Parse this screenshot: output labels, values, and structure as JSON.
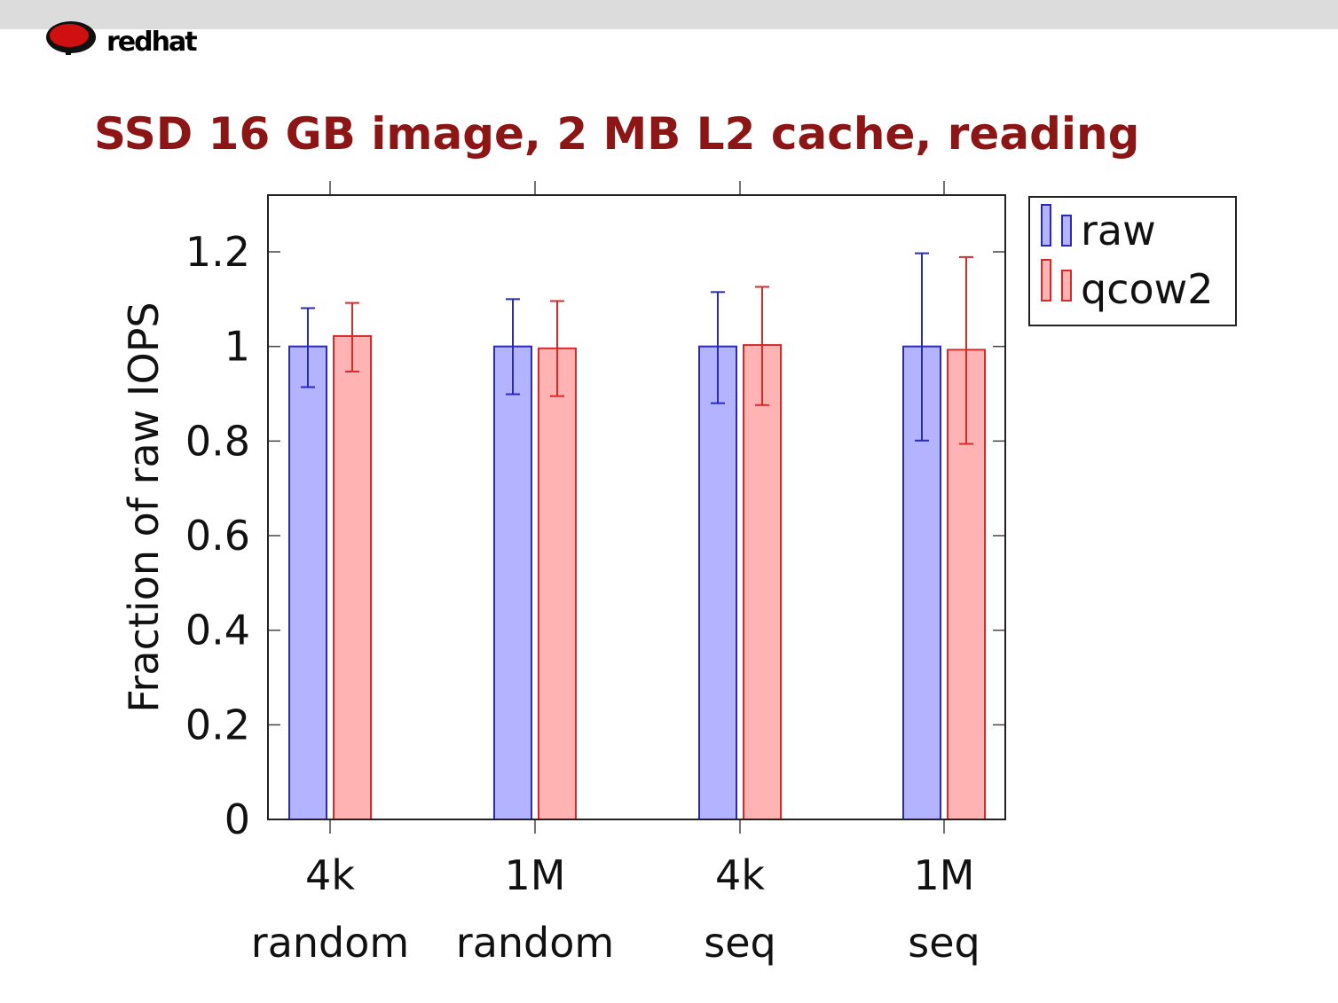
{
  "logo": {
    "text": "redhat",
    "icon": "redhat-shadowman-logo"
  },
  "chart_data": {
    "type": "bar",
    "title": "SSD 16 GB image, 2 MB L2 cache, reading",
    "ylabel": "Fraction of raw IOPS",
    "xlabel": "",
    "categories": [
      [
        "4k",
        "random"
      ],
      [
        "1M",
        "random"
      ],
      [
        "4k",
        "seq"
      ],
      [
        "1M",
        "seq"
      ]
    ],
    "ylim": [
      0,
      1.32
    ],
    "yticks": [
      "0",
      "0.2",
      "0.4",
      "0.6",
      "0.8",
      "1",
      "1.2"
    ],
    "ytick_values": [
      0,
      0.2,
      0.4,
      0.6,
      0.8,
      1,
      1.2
    ],
    "grid": false,
    "legend_position": "outside-top-right",
    "series": [
      {
        "name": "raw",
        "values": [
          1.0,
          1.0,
          1.0,
          1.0
        ],
        "err_high": [
          1.081,
          1.1,
          1.115,
          1.197
        ],
        "err_low": [
          0.914,
          0.899,
          0.88,
          0.801
        ],
        "fill": "#b3b3ff",
        "stroke": "#2a2ab8"
      },
      {
        "name": "qcow2",
        "values": [
          1.022,
          0.996,
          1.003,
          0.993
        ],
        "err_high": [
          1.092,
          1.096,
          1.126,
          1.189
        ],
        "err_low": [
          0.947,
          0.895,
          0.876,
          0.794
        ],
        "fill": "#ffb3b3",
        "stroke": "#d42a2a"
      }
    ]
  }
}
